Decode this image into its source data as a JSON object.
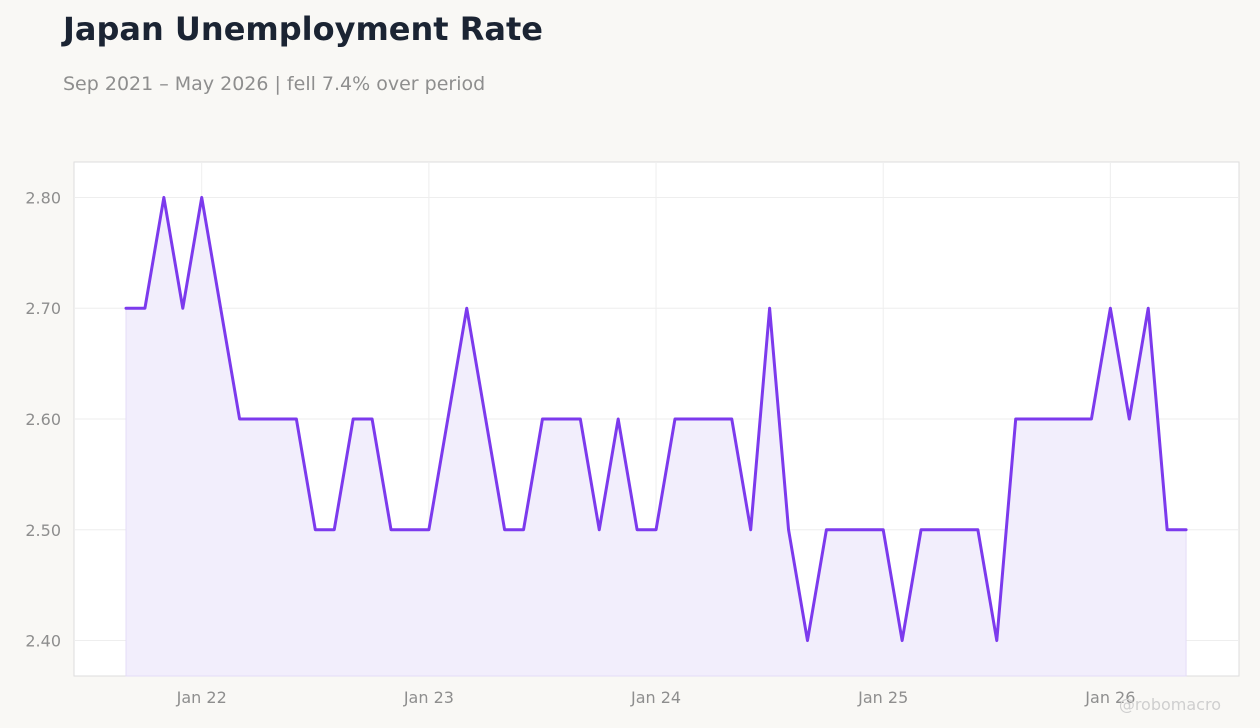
{
  "title": "Japan Unemployment Rate",
  "subtitle": "Sep 2021 – May 2026 | fell 7.4% over period",
  "watermark": "@robomacro",
  "colors": {
    "line": "#7c3aed",
    "fill": "#f2eefc",
    "background": "#f9f8f5",
    "plot_background": "#ffffff",
    "grid": "#eeeeee",
    "axis_text": "#8e8e8e"
  },
  "chart_data": {
    "type": "line",
    "frequency": "monthly",
    "x_start": "2021-09",
    "x_end": "2026-05",
    "y": [
      2.7,
      2.7,
      2.8,
      2.7,
      2.8,
      2.7,
      2.6,
      2.6,
      2.6,
      2.6,
      2.5,
      2.5,
      2.6,
      2.6,
      2.5,
      2.5,
      2.5,
      2.6,
      2.7,
      2.6,
      2.5,
      2.5,
      2.6,
      2.6,
      2.6,
      2.5,
      2.6,
      2.5,
      2.5,
      2.6,
      2.6,
      2.6,
      2.6,
      2.5,
      2.7,
      2.5,
      2.4,
      2.5,
      2.5,
      2.5,
      2.5,
      2.4,
      2.5,
      2.5,
      2.5,
      2.5,
      2.4,
      2.6,
      2.6,
      2.6,
      2.6,
      2.6,
      2.7,
      2.6,
      2.7,
      2.5,
      2.5
    ],
    "x_ticks": [
      "Jan 22",
      "Jan 23",
      "Jan 24",
      "Jan 25",
      "Jan 26"
    ],
    "y_ticks": [
      "2.40",
      "2.50",
      "2.60",
      "2.70",
      "2.80"
    ],
    "ylim": [
      2.368,
      2.832
    ],
    "grid": true,
    "area_fill": true,
    "legend": "none"
  }
}
